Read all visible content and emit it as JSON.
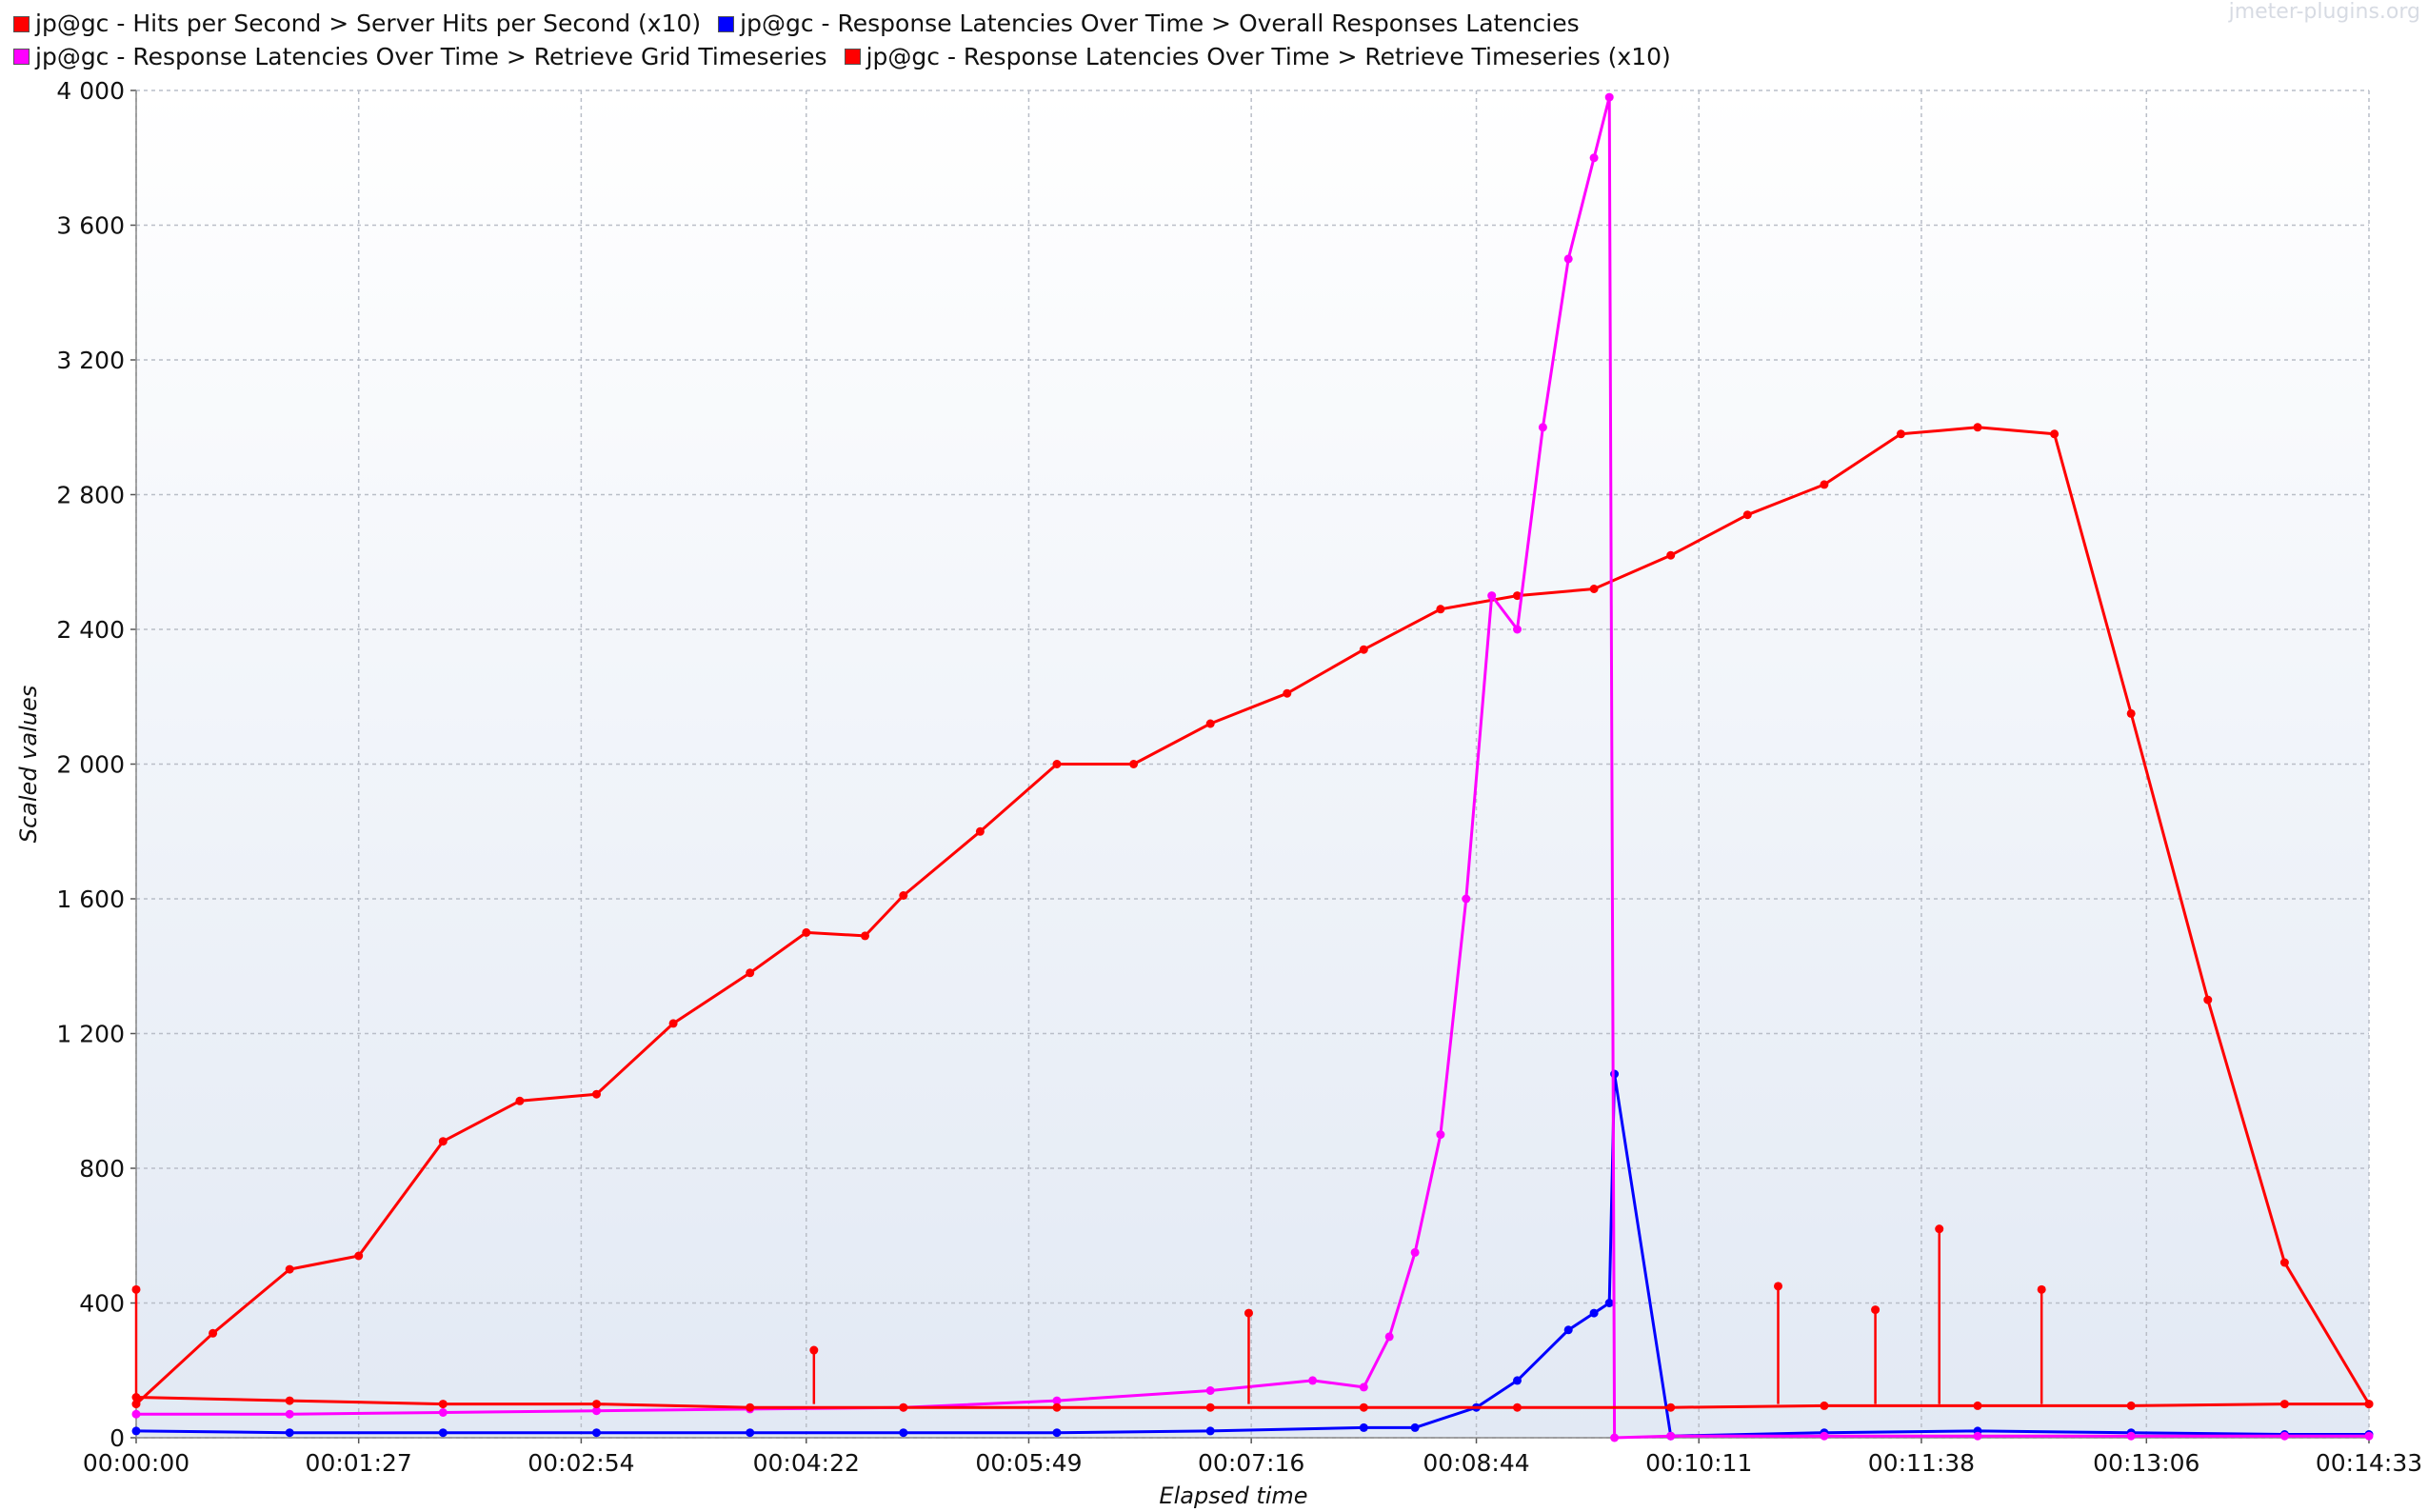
{
  "watermark": "jmeter-plugins.org",
  "chart_data": {
    "type": "line",
    "xlabel": "Elapsed time",
    "ylabel": "Scaled values",
    "ylim": [
      0,
      4000
    ],
    "xlim_seconds": [
      0,
      873
    ],
    "x_ticks": [
      "00:00:00",
      "00:01:27",
      "00:02:54",
      "00:04:22",
      "00:05:49",
      "00:07:16",
      "00:08:44",
      "00:10:11",
      "00:11:38",
      "00:13:06",
      "00:14:33"
    ],
    "y_ticks": [
      "0",
      "400",
      "800",
      "1 200",
      "1 600",
      "2 000",
      "2 400",
      "2 800",
      "3 200",
      "3 600",
      "4 000"
    ],
    "grid": true,
    "legend_position": "top",
    "series": [
      {
        "name": "jp@gc - Hits per Second > Server Hits per Second (x10)",
        "color": "#ff0000",
        "x": [
          "00:00:00",
          "00:00:30",
          "00:01:00",
          "00:01:27",
          "00:02:00",
          "00:02:30",
          "00:03:00",
          "00:03:30",
          "00:04:00",
          "00:04:22",
          "00:04:45",
          "00:05:00",
          "00:05:30",
          "00:06:00",
          "00:06:30",
          "00:07:00",
          "00:07:30",
          "00:08:00",
          "00:08:30",
          "00:09:00",
          "00:09:30",
          "00:10:00",
          "00:10:30",
          "00:11:00",
          "00:11:30",
          "00:12:00",
          "00:12:30",
          "00:13:00",
          "00:13:30",
          "00:14:00",
          "00:14:33"
        ],
        "y": [
          100,
          310,
          500,
          540,
          880,
          1000,
          1020,
          1230,
          1380,
          1500,
          1490,
          1610,
          1800,
          2000,
          2000,
          2120,
          2210,
          2340,
          2460,
          2500,
          2520,
          2620,
          2740,
          2830,
          2980,
          3000,
          2980,
          2150,
          1300,
          520,
          100
        ]
      },
      {
        "name": "jp@gc - Response Latencies Over Time > Overall Responses Latencies",
        "color": "#0000ff",
        "x": [
          "00:00:00",
          "00:01:00",
          "00:02:00",
          "00:03:00",
          "00:04:00",
          "00:05:00",
          "00:06:00",
          "00:07:00",
          "00:08:00",
          "00:08:20",
          "00:08:44",
          "00:09:00",
          "00:09:20",
          "00:09:30",
          "00:09:36",
          "00:09:38",
          "00:10:00",
          "00:11:00",
          "00:12:00",
          "00:13:00",
          "00:14:00",
          "00:14:33"
        ],
        "y": [
          20,
          15,
          15,
          15,
          15,
          15,
          15,
          20,
          30,
          30,
          90,
          170,
          320,
          370,
          400,
          1080,
          5,
          15,
          20,
          15,
          10,
          10
        ]
      },
      {
        "name": "jp@gc - Response Latencies Over Time > Retrieve Grid Timeseries",
        "color": "#ff00ff",
        "x": [
          "00:00:00",
          "00:01:00",
          "00:02:00",
          "00:03:00",
          "00:04:00",
          "00:05:00",
          "00:06:00",
          "00:07:00",
          "00:07:40",
          "00:08:00",
          "00:08:10",
          "00:08:20",
          "00:08:30",
          "00:08:40",
          "00:08:50",
          "00:09:00",
          "00:09:10",
          "00:09:20",
          "00:09:30",
          "00:09:36",
          "00:09:38",
          "00:10:00",
          "00:11:00",
          "00:12:00",
          "00:13:00",
          "00:14:00",
          "00:14:33"
        ],
        "y": [
          70,
          70,
          75,
          80,
          85,
          90,
          110,
          140,
          170,
          150,
          300,
          550,
          900,
          1600,
          2500,
          2400,
          3000,
          3500,
          3800,
          3980,
          0,
          5,
          5,
          5,
          5,
          5,
          5
        ]
      },
      {
        "name": "jp@gc - Response Latencies Over Time > Retrieve Timeseries (x10)",
        "color": "#ff0000",
        "x": [
          "00:00:00",
          "00:01:00",
          "00:02:00",
          "00:03:00",
          "00:04:00",
          "00:05:00",
          "00:06:00",
          "00:07:00",
          "00:08:00",
          "00:09:00",
          "00:10:00",
          "00:11:00",
          "00:12:00",
          "00:13:00",
          "00:14:00",
          "00:14:33"
        ],
        "y": [
          120,
          110,
          100,
          100,
          90,
          90,
          90,
          90,
          90,
          90,
          90,
          95,
          95,
          95,
          100,
          100
        ],
        "spikes": [
          {
            "x": "00:00:00",
            "y": 440
          },
          {
            "x": "00:04:25",
            "y": 260
          },
          {
            "x": "00:07:15",
            "y": 370
          },
          {
            "x": "00:10:42",
            "y": 450
          },
          {
            "x": "00:11:20",
            "y": 380
          },
          {
            "x": "00:11:45",
            "y": 620
          },
          {
            "x": "00:12:25",
            "y": 440
          }
        ]
      }
    ]
  }
}
